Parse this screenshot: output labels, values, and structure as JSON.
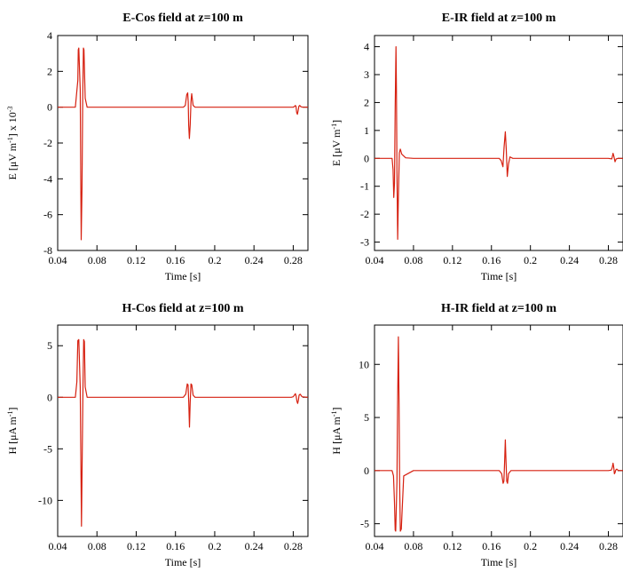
{
  "chart_data": [
    {
      "type": "line",
      "title": "E-Cos field at z=100 m",
      "xlabel": "Time [s]",
      "ylabel_main": "E [μV m",
      "ylabel_sup1": "-1",
      "ylabel_mid": "] x 10",
      "ylabel_sup2": "-3",
      "xlim": [
        0.04,
        0.295
      ],
      "ylim": [
        -8,
        4
      ],
      "xticks": [
        "0.04",
        "0.08",
        "0.12",
        "0.16",
        "0.2",
        "0.24",
        "0.28"
      ],
      "yticks": [
        "4",
        "2",
        "0",
        "-2",
        "-4",
        "-6",
        "-8"
      ],
      "series": [
        {
          "color": "#d62010",
          "x": [
            0.04,
            0.055,
            0.058,
            0.0605,
            0.061,
            0.0615,
            0.063,
            0.0635,
            0.064,
            0.0648,
            0.0655,
            0.0662,
            0.0668,
            0.068,
            0.07,
            0.08,
            0.12,
            0.16,
            0.168,
            0.17,
            0.1715,
            0.1725,
            0.173,
            0.1735,
            0.1742,
            0.175,
            0.1758,
            0.1765,
            0.178,
            0.18,
            0.2,
            0.24,
            0.275,
            0.28,
            0.2815,
            0.2822,
            0.2828,
            0.2835,
            0.2842,
            0.285,
            0.2858,
            0.2866,
            0.288,
            0.29,
            0.295
          ],
          "y": [
            0,
            0,
            0,
            1.5,
            3.2,
            3.3,
            1.0,
            -4.0,
            -7.4,
            -4.5,
            0.5,
            3.3,
            3.2,
            0.5,
            0,
            0,
            0,
            0,
            0,
            0.1,
            0.7,
            0.8,
            0.3,
            -1.0,
            -1.75,
            -1.0,
            0.3,
            0.75,
            0.1,
            0,
            0,
            0,
            0,
            0,
            0.05,
            0.1,
            0.05,
            -0.3,
            -0.4,
            -0.2,
            0.05,
            0.1,
            0.02,
            0,
            0
          ]
        }
      ]
    },
    {
      "type": "line",
      "title": "E-IR field at z=100 m",
      "xlabel": "Time [s]",
      "ylabel_main": "E [μV m",
      "ylabel_sup1": "-1",
      "ylabel_mid": "]",
      "ylabel_sup2": "",
      "xlim": [
        0.04,
        0.295
      ],
      "ylim": [
        -3.3,
        4.4
      ],
      "xticks": [
        "0.04",
        "0.08",
        "0.12",
        "0.16",
        "0.2",
        "0.24",
        "0.28"
      ],
      "yticks": [
        "4",
        "3",
        "2",
        "1",
        "0",
        "-1",
        "-2",
        "-3"
      ],
      "series": [
        {
          "color": "#d62010",
          "x": [
            0.04,
            0.055,
            0.058,
            0.059,
            0.0598,
            0.0605,
            0.0612,
            0.062,
            0.0625,
            0.063,
            0.0638,
            0.0645,
            0.0655,
            0.0665,
            0.068,
            0.072,
            0.08,
            0.12,
            0.16,
            0.168,
            0.17,
            0.1718,
            0.173,
            0.1742,
            0.1752,
            0.1762,
            0.1775,
            0.179,
            0.182,
            0.2,
            0.24,
            0.28,
            0.2835,
            0.2848,
            0.2858,
            0.2868,
            0.288,
            0.29,
            0.295
          ],
          "y": [
            0,
            0,
            0,
            -0.4,
            -1.4,
            -0.9,
            1.8,
            4.0,
            2.5,
            -0.5,
            -2.9,
            -1.4,
            0.2,
            0.33,
            0.15,
            0.02,
            0,
            0,
            0,
            0,
            -0.08,
            -0.3,
            0.4,
            0.95,
            0.3,
            -0.65,
            -0.2,
            0.05,
            0,
            0,
            0,
            0,
            -0.02,
            0.18,
            0.05,
            -0.12,
            -0.02,
            0,
            0
          ]
        }
      ]
    },
    {
      "type": "line",
      "title": "H-Cos field at z=100 m",
      "xlabel": "Time [s]",
      "ylabel_main": "H [μA m",
      "ylabel_sup1": "-1",
      "ylabel_mid": "]",
      "ylabel_sup2": "",
      "xlim": [
        0.04,
        0.295
      ],
      "ylim": [
        -13.5,
        7
      ],
      "xticks": [
        "0.04",
        "0.08",
        "0.12",
        "0.16",
        "0.2",
        "0.24",
        "0.28"
      ],
      "yticks": [
        "5",
        "0",
        "-5",
        "-10"
      ],
      "series": [
        {
          "color": "#d62010",
          "x": [
            0.04,
            0.055,
            0.058,
            0.0595,
            0.0605,
            0.0615,
            0.063,
            0.0635,
            0.0642,
            0.065,
            0.0658,
            0.0665,
            0.0672,
            0.068,
            0.07,
            0.08,
            0.12,
            0.16,
            0.168,
            0.1705,
            0.172,
            0.1728,
            0.1736,
            0.1743,
            0.175,
            0.1758,
            0.1766,
            0.178,
            0.18,
            0.2,
            0.24,
            0.278,
            0.28,
            0.2815,
            0.2822,
            0.283,
            0.2838,
            0.2845,
            0.2852,
            0.286,
            0.287,
            0.289,
            0.295
          ],
          "y": [
            0,
            0,
            0,
            1.5,
            5.5,
            5.6,
            1.0,
            -5.0,
            -12.5,
            -6.0,
            1.0,
            5.6,
            5.4,
            1.0,
            0,
            0,
            0,
            0,
            0,
            0.3,
            1.3,
            1.2,
            -0.5,
            -2.9,
            -0.5,
            1.3,
            1.2,
            0.2,
            0,
            0,
            0,
            0,
            0.05,
            0.25,
            0.35,
            0.1,
            -0.4,
            -0.6,
            -0.3,
            0.2,
            0.3,
            0.05,
            0
          ]
        }
      ]
    },
    {
      "type": "line",
      "title": "H-IR field at z=100 m",
      "xlabel": "Time [s]",
      "ylabel_main": "H [μA m",
      "ylabel_sup1": "-1",
      "ylabel_mid": "]",
      "ylabel_sup2": "",
      "xlim": [
        0.04,
        0.295
      ],
      "ylim": [
        -6.2,
        13.7
      ],
      "xticks": [
        "0.04",
        "0.08",
        "0.12",
        "0.16",
        "0.2",
        "0.24",
        "0.28"
      ],
      "yticks": [
        "10",
        "5",
        "0",
        "-5"
      ],
      "series": [
        {
          "color": "#d62010",
          "x": [
            0.04,
            0.055,
            0.058,
            0.0595,
            0.0605,
            0.0612,
            0.0618,
            0.063,
            0.0637,
            0.0645,
            0.0652,
            0.0658,
            0.0665,
            0.0675,
            0.07,
            0.08,
            0.12,
            0.16,
            0.168,
            0.1705,
            0.172,
            0.1728,
            0.1735,
            0.1742,
            0.175,
            0.1757,
            0.1765,
            0.1775,
            0.18,
            0.2,
            0.24,
            0.28,
            0.283,
            0.284,
            0.2848,
            0.2855,
            0.2862,
            0.2868,
            0.2875,
            0.2885,
            0.29,
            0.295
          ],
          "y": [
            0,
            0,
            0,
            -0.5,
            -3.0,
            -5.6,
            -5.7,
            -1.0,
            6.0,
            12.6,
            6.0,
            -1.0,
            -5.7,
            -5.5,
            -0.5,
            0,
            0,
            0,
            0,
            -0.3,
            -1.2,
            -1.0,
            0.8,
            2.9,
            0.8,
            -1.0,
            -1.2,
            -0.3,
            0,
            0,
            0,
            0,
            0.05,
            0.3,
            0.7,
            0.3,
            -0.3,
            -0.2,
            0.05,
            0.15,
            0.02,
            0
          ]
        }
      ]
    }
  ]
}
